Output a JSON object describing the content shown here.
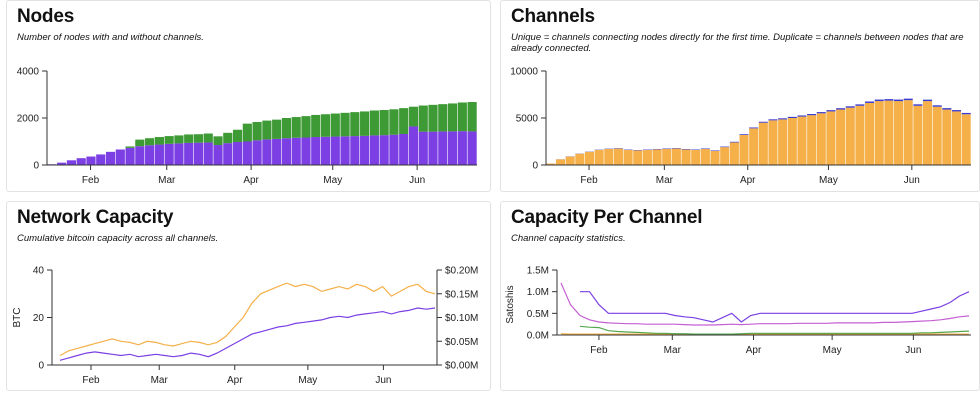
{
  "colors": {
    "purple": "#7b3fe4",
    "green": "#3e9a35",
    "orange": "#f5b04a",
    "navy": "#3b3bd0",
    "pink": "#c65fd3",
    "green_line": "#54a84b"
  },
  "charts": {
    "nodes": {
      "title": "Nodes",
      "subtitle": "Number of nodes with and without channels."
    },
    "channels": {
      "title": "Channels",
      "subtitle": "Unique = channels connecting nodes directly for the first time. Duplicate = channels between nodes that are already connected."
    },
    "capacity": {
      "title": "Network Capacity",
      "subtitle": "Cumulative bitcoin capacity across all channels.",
      "ylabel": "BTC"
    },
    "per_channel": {
      "title": "Capacity Per Channel",
      "subtitle": "Channel capacity statistics.",
      "ylabel": "Satoshis"
    }
  },
  "chart_data": [
    {
      "type": "bar",
      "stacked": true,
      "title": "Nodes",
      "x_range": [
        "2018-01-16",
        "2018-06-23"
      ],
      "x_ticks": [
        "Feb",
        "Mar",
        "Apr",
        "May",
        "Jun"
      ],
      "y_ticks": [
        0,
        2000,
        4000
      ],
      "ylim": [
        0,
        4000
      ],
      "series": [
        {
          "color": "purple",
          "values": [
            30,
            100,
            200,
            290,
            360,
            450,
            560,
            660,
            730,
            800,
            840,
            870,
            900,
            920,
            940,
            950,
            960,
            850,
            930,
            980,
            1000,
            1050,
            1090,
            1110,
            1140,
            1160,
            1170,
            1190,
            1200,
            1210,
            1220,
            1230,
            1240,
            1260,
            1270,
            1290,
            1320,
            1640,
            1420,
            1420,
            1430,
            1430,
            1440,
            1430
          ]
        },
        {
          "color": "green",
          "values": [
            0,
            0,
            0,
            0,
            0,
            0,
            0,
            0,
            60,
            280,
            300,
            320,
            330,
            340,
            360,
            360,
            380,
            370,
            440,
            520,
            760,
            780,
            800,
            820,
            860,
            880,
            910,
            940,
            960,
            980,
            1000,
            1020,
            1040,
            1060,
            1070,
            1080,
            1100,
            840,
            1110,
            1140,
            1160,
            1190,
            1220,
            1250
          ]
        }
      ]
    },
    {
      "type": "bar",
      "stacked": true,
      "title": "Channels",
      "x_range": [
        "2018-01-16",
        "2018-06-23"
      ],
      "x_ticks": [
        "Feb",
        "Mar",
        "Apr",
        "May",
        "Jun"
      ],
      "y_ticks": [
        0,
        5000,
        10000
      ],
      "ylim": [
        0,
        10000
      ],
      "series": [
        {
          "color": "orange",
          "values": [
            150,
            600,
            900,
            1200,
            1400,
            1600,
            1700,
            1750,
            1600,
            1550,
            1600,
            1650,
            1700,
            1750,
            1650,
            1600,
            1700,
            1500,
            1900,
            2400,
            3200,
            3900,
            4500,
            4750,
            4850,
            5000,
            5150,
            5300,
            5500,
            5700,
            5900,
            6100,
            6300,
            6600,
            6800,
            6850,
            6800,
            6900,
            6300,
            6800,
            6200,
            5900,
            5700,
            5400
          ]
        },
        {
          "color": "navy",
          "values": [
            5,
            10,
            15,
            20,
            25,
            30,
            35,
            40,
            40,
            40,
            45,
            45,
            50,
            50,
            50,
            50,
            55,
            55,
            60,
            70,
            80,
            90,
            100,
            110,
            115,
            120,
            120,
            125,
            130,
            135,
            140,
            145,
            150,
            155,
            160,
            160,
            160,
            160,
            155,
            150,
            150,
            150,
            145,
            140
          ]
        }
      ]
    },
    {
      "type": "line",
      "title": "Network Capacity",
      "ylabel": "BTC",
      "x_range": [
        "2018-01-16",
        "2018-06-23"
      ],
      "x_ticks": [
        "Feb",
        "Mar",
        "Apr",
        "May",
        "Jun"
      ],
      "y_ticks": [
        0,
        20,
        40
      ],
      "ylim": [
        0,
        40
      ],
      "y2_ticks": [
        "$0.00M",
        "$0.05M",
        "$0.10M",
        "$0.15M",
        "$0.20M"
      ],
      "series": [
        {
          "color": "purple",
          "axis": "left",
          "values": [
            2,
            3,
            4,
            5,
            5.5,
            5,
            4.5,
            4,
            4.5,
            3.5,
            4,
            4.5,
            4,
            3.5,
            4,
            5,
            4.5,
            3.5,
            5,
            7,
            9,
            11,
            13,
            14,
            15,
            16,
            16.5,
            17.5,
            18,
            18.5,
            19,
            20,
            20.5,
            20,
            21,
            21.5,
            22,
            22.5,
            21.5,
            22.5,
            23,
            24,
            23.5,
            24
          ]
        },
        {
          "color": "orange",
          "axis": "left",
          "values": [
            4,
            6,
            7,
            8,
            9,
            10,
            11,
            10,
            9.5,
            8.5,
            10,
            9.5,
            8.5,
            8,
            9,
            10,
            9.5,
            8.5,
            9.5,
            12,
            16,
            20,
            26,
            30,
            31.5,
            33,
            34.5,
            33,
            34,
            33,
            31,
            32,
            33,
            32,
            34,
            33,
            31,
            33,
            29,
            31,
            33,
            34,
            31,
            30
          ]
        }
      ]
    },
    {
      "type": "line",
      "title": "Capacity Per Channel",
      "ylabel": "Satoshis",
      "x_range": [
        "2018-01-16",
        "2018-06-23"
      ],
      "x_ticks": [
        "Feb",
        "Mar",
        "Apr",
        "May",
        "Jun"
      ],
      "y_ticks": [
        "0.0M",
        "0.5M",
        "1.0M",
        "1.5M"
      ],
      "ylim": [
        0,
        1500000
      ],
      "series": [
        {
          "color": "purple",
          "values": [
            null,
            null,
            1000000,
            1000000,
            700000,
            500000,
            500000,
            500000,
            500000,
            500000,
            500000,
            500000,
            450000,
            420000,
            400000,
            350000,
            300000,
            400000,
            500000,
            300000,
            450000,
            500000,
            500000,
            500000,
            500000,
            500000,
            500000,
            500000,
            500000,
            500000,
            500000,
            500000,
            500000,
            500000,
            500000,
            500000,
            500000,
            500000,
            550000,
            600000,
            650000,
            750000,
            900000,
            1000000
          ]
        },
        {
          "color": "pink",
          "values": [
            1200000,
            700000,
            450000,
            350000,
            300000,
            280000,
            270000,
            260000,
            260000,
            250000,
            250000,
            250000,
            250000,
            240000,
            230000,
            230000,
            230000,
            240000,
            250000,
            240000,
            250000,
            260000,
            260000,
            260000,
            260000,
            270000,
            270000,
            270000,
            270000,
            280000,
            280000,
            280000,
            280000,
            280000,
            290000,
            290000,
            300000,
            310000,
            320000,
            330000,
            350000,
            380000,
            420000,
            440000
          ]
        },
        {
          "color": "green_line",
          "values": [
            null,
            null,
            200000,
            180000,
            170000,
            100000,
            80000,
            70000,
            60000,
            50000,
            40000,
            40000,
            30000,
            30000,
            20000,
            20000,
            20000,
            20000,
            20000,
            30000,
            40000,
            40000,
            40000,
            40000,
            40000,
            40000,
            40000,
            40000,
            40000,
            40000,
            40000,
            40000,
            40000,
            40000,
            40000,
            40000,
            40000,
            40000,
            50000,
            50000,
            60000,
            70000,
            80000,
            90000
          ]
        },
        {
          "color": "orange",
          "values": [
            30000,
            20000,
            20000,
            20000,
            20000,
            20000,
            20000,
            20000,
            20000,
            20000,
            20000,
            20000,
            20000,
            20000,
            20000,
            20000,
            20000,
            20000,
            20000,
            20000,
            20000,
            20000,
            20000,
            20000,
            20000,
            20000,
            20000,
            20000,
            20000,
            20000,
            20000,
            20000,
            20000,
            20000,
            20000,
            20000,
            20000,
            20000,
            20000,
            20000,
            20000,
            20000,
            20000,
            20000
          ]
        }
      ]
    }
  ]
}
